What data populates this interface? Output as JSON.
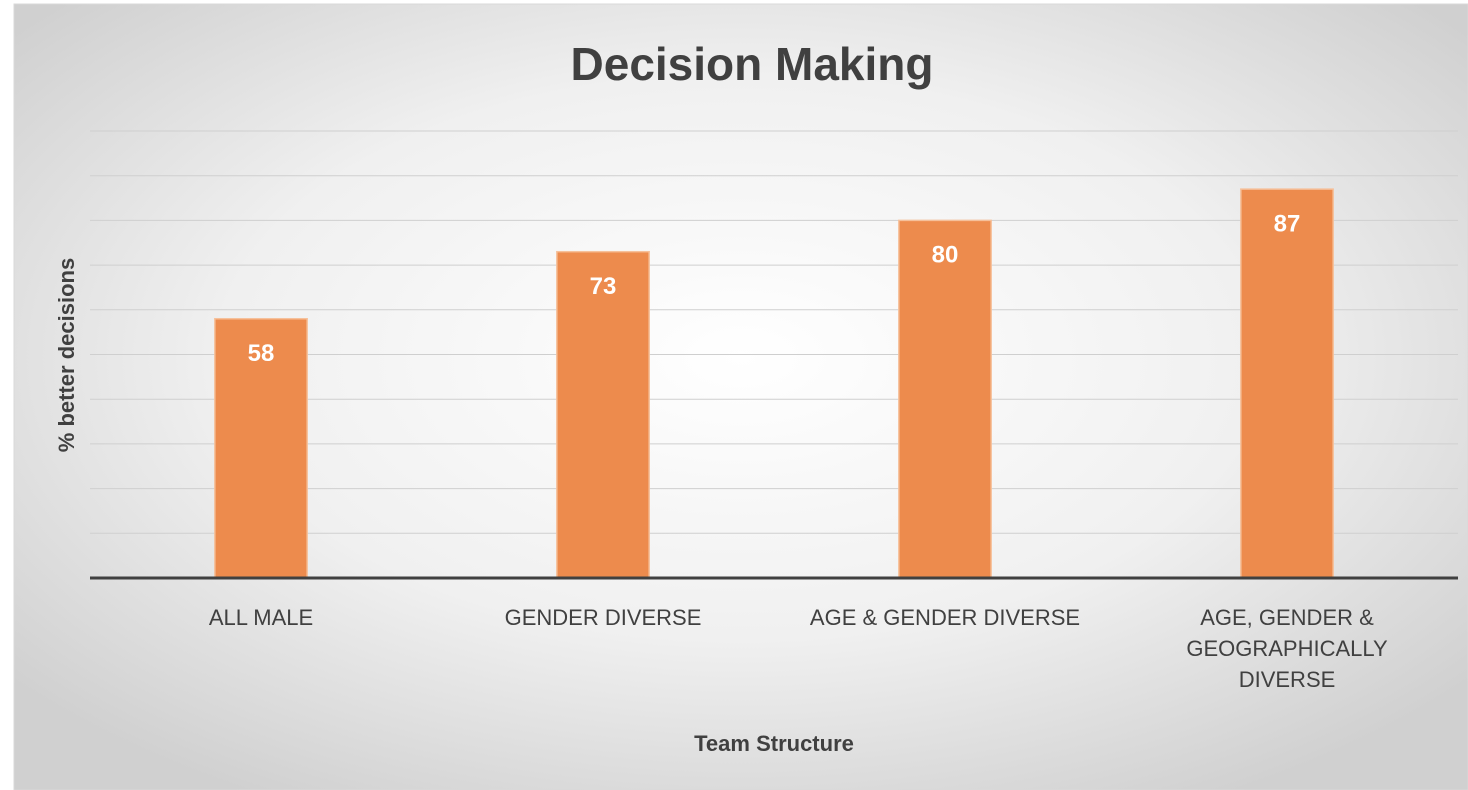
{
  "chart_data": {
    "type": "bar",
    "title": "Decision Making",
    "x_label": "Team Structure",
    "y_label": "% better decisions",
    "categories": [
      "ALL MALE",
      "GENDER DIVERSE",
      "AGE & GENDER DIVERSE",
      "AGE, GENDER & GEOGRAPHICALLY DIVERSE"
    ],
    "values": [
      58,
      73,
      80,
      87
    ],
    "color": "#ed8b4d",
    "ylim": [
      0,
      100
    ],
    "yticks": [
      0,
      10,
      20,
      30,
      40,
      50,
      60,
      70,
      80,
      90,
      100
    ],
    "grid": true
  }
}
